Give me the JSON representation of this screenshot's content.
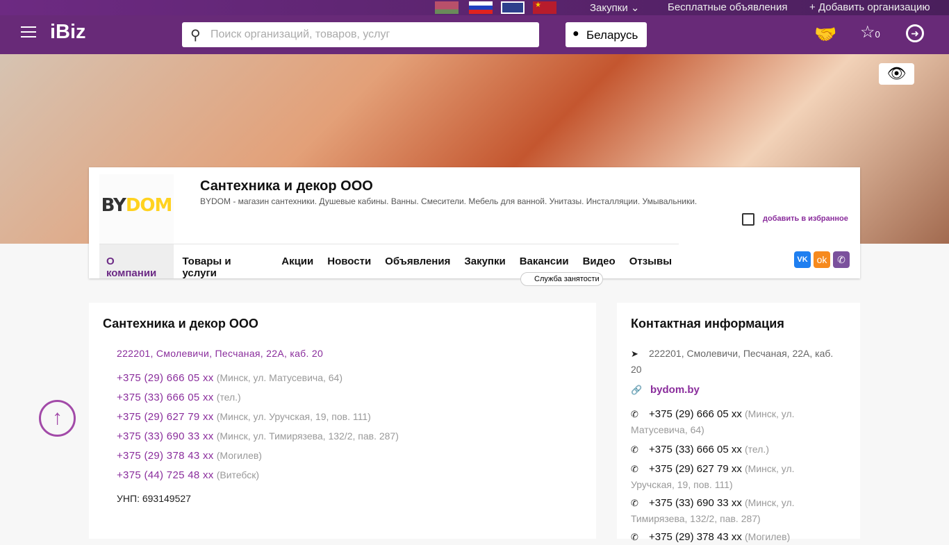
{
  "topbar": {
    "flags": [
      "belarus",
      "russia",
      "uk",
      "china"
    ],
    "purchases": "Закупки",
    "free_ads": "Бесплатные объявления",
    "add_org": "Добавить организацию"
  },
  "header": {
    "logo": "iBiz",
    "search_placeholder": "Поиск организаций, товаров, услуг",
    "country": "Беларусь",
    "favorites_count": "0"
  },
  "company": {
    "logo_text_by": "BY",
    "logo_text_dom": "DOM",
    "name": "Сантехника и декор ООО",
    "description": "BYDOM - магазин сантехники. Душевые кабины. Ванны. Смесители. Мебель для ванной. Унитазы. Инсталляции. Умывальники.",
    "favorite_label": "добавить в избранное",
    "tabs": [
      "О компании",
      "Товары и услуги",
      "Акции",
      "Новости",
      "Объявления",
      "Закупки",
      "Вакансии",
      "Видео",
      "Отзывы"
    ],
    "tooltip": "Служба занятости"
  },
  "main": {
    "title": "Сантехника и декор ООО",
    "address": "222201, Смолевичи, Песчаная, 22А, каб. 20",
    "phones": [
      {
        "number": "+375 (29) 666 05 xx",
        "note": "(Минск, ул. Матусевича, 64)"
      },
      {
        "number": "+375 (33) 666 05 xx",
        "note": "(тел.)"
      },
      {
        "number": "+375 (29) 627 79 xx",
        "note": "(Минск, ул. Уручская, 19, пов. 111)"
      },
      {
        "number": "+375 (33) 690 33 xx",
        "note": "(Минск, ул. Тимирязева, 132/2, пав. 287)"
      },
      {
        "number": "+375 (29) 378 43 xx",
        "note": "(Могилев)"
      },
      {
        "number": "+375 (44) 725 48 xx",
        "note": "(Витебск)"
      }
    ],
    "unp": "УНП: 693149527"
  },
  "contacts": {
    "title": "Контактная информация",
    "address": "222201, Смолевичи, Песчаная, 22А, каб. 20",
    "site": "bydom.by"
  },
  "colors": {
    "brand": "#682a78",
    "accent": "#8a2d9c"
  }
}
